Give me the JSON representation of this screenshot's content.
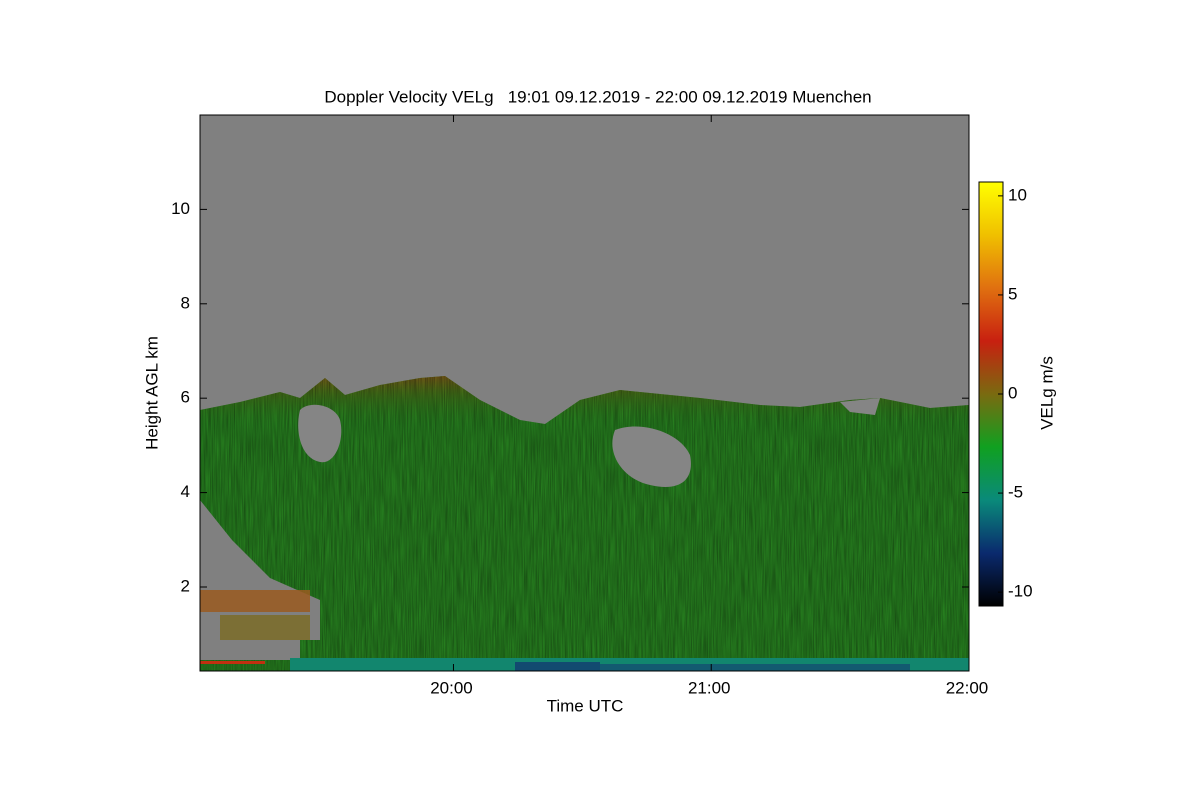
{
  "chart_data": {
    "type": "heatmap",
    "title": "Doppler Velocity VELg   19:01 09.12.2019 - 22:00 09.12.2019 Muenchen",
    "xlabel": "Time UTC",
    "ylabel": "Height AGL km",
    "xlim": [
      19.0167,
      22
    ],
    "xticks": [
      {
        "value": 20,
        "label": "20:00"
      },
      {
        "value": 21,
        "label": "21:00"
      },
      {
        "value": 22,
        "label": "22:00"
      }
    ],
    "ylim": [
      0.22,
      12
    ],
    "yticks": [
      2,
      4,
      6,
      8,
      10
    ],
    "colorbar": {
      "label": "VELg m/s",
      "clim": [
        -10.7,
        10.7
      ],
      "ticks": [
        -10,
        -5,
        0,
        5,
        10
      ],
      "colors": [
        "#000000",
        "#0a2a6e",
        "#0a8a7a",
        "#10a020",
        "#7a6a10",
        "#c82010",
        "#e07010",
        "#f0c000",
        "#ffff00"
      ]
    }
  }
}
